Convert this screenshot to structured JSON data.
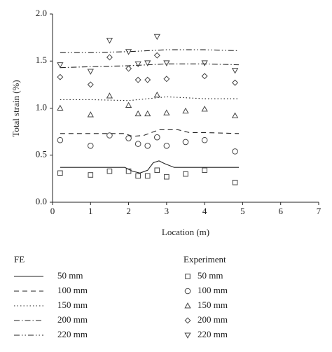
{
  "chart_data": {
    "type": "line",
    "xlabel": "Location (m)",
    "ylabel": "Total strain (%)",
    "xlim": [
      0,
      7
    ],
    "xticks": [
      0,
      1,
      2,
      3,
      4,
      5,
      6,
      7
    ],
    "ylim": [
      0,
      2
    ],
    "yticks": [
      {
        "value": 0,
        "label": "0.0"
      },
      {
        "value": 0.5,
        "label": "0.5"
      },
      {
        "value": 1,
        "label": "1.0"
      },
      {
        "value": 1.5,
        "label": "1.5"
      },
      {
        "value": 2,
        "label": "2.0"
      }
    ],
    "groups": [
      {
        "title": "FE",
        "series": [
          {
            "name": "50 mm",
            "type": "line",
            "dash": "none",
            "color": "#222",
            "x": [
              0.2,
              1,
              1.9,
              2.1,
              2.3,
              2.5,
              2.65,
              2.8,
              2.95,
              3.2,
              4,
              4.9
            ],
            "values": [
              0.37,
              0.37,
              0.37,
              0.33,
              0.31,
              0.34,
              0.42,
              0.44,
              0.41,
              0.37,
              0.37,
              0.37
            ]
          },
          {
            "name": "100 mm",
            "type": "line",
            "dash": "7 5",
            "color": "#222",
            "x": [
              0.2,
              1,
              1.9,
              2.1,
              2.4,
              2.6,
              2.8,
              3.3,
              3.6,
              4,
              4.9
            ],
            "values": [
              0.73,
              0.73,
              0.73,
              0.7,
              0.71,
              0.74,
              0.77,
              0.77,
              0.74,
              0.74,
              0.73
            ]
          },
          {
            "name": "150 mm",
            "type": "line",
            "dash": "1.5 3",
            "color": "#222",
            "x": [
              0.2,
              1,
              2,
              2.5,
              3,
              4,
              4.9
            ],
            "values": [
              1.09,
              1.09,
              1.08,
              1.1,
              1.12,
              1.1,
              1.1
            ]
          },
          {
            "name": "200 mm",
            "type": "line",
            "dash": "8 3 1.5 3",
            "color": "#222",
            "x": [
              0.2,
              1,
              2,
              2.5,
              3,
              4,
              4.9
            ],
            "values": [
              1.43,
              1.44,
              1.45,
              1.46,
              1.47,
              1.47,
              1.46
            ]
          },
          {
            "name": "220 mm",
            "type": "line",
            "dash": "8 3 1.5 3 1.5 3",
            "color": "#222",
            "x": [
              0.2,
              1,
              2,
              2.5,
              3,
              4,
              4.9
            ],
            "values": [
              1.59,
              1.59,
              1.6,
              1.61,
              1.62,
              1.62,
              1.61
            ]
          }
        ]
      },
      {
        "title": "Experiment",
        "series": [
          {
            "name": "50 mm",
            "type": "scatter",
            "marker": "square",
            "color": "#444",
            "x": [
              0.2,
              1,
              1.5,
              2,
              2.25,
              2.5,
              2.75,
              3,
              3.5,
              4,
              4.8
            ],
            "values": [
              0.31,
              0.29,
              0.33,
              0.33,
              0.28,
              0.28,
              0.34,
              0.27,
              0.3,
              0.34,
              0.21
            ]
          },
          {
            "name": "100 mm",
            "type": "scatter",
            "marker": "circle",
            "color": "#444",
            "x": [
              0.2,
              1,
              1.5,
              2,
              2.25,
              2.5,
              2.75,
              3,
              3.5,
              4,
              4.8
            ],
            "values": [
              0.66,
              0.6,
              0.71,
              0.68,
              0.62,
              0.6,
              0.69,
              0.6,
              0.64,
              0.66,
              0.54
            ]
          },
          {
            "name": "150 mm",
            "type": "scatter",
            "marker": "triangle",
            "color": "#444",
            "x": [
              0.2,
              1,
              1.5,
              2,
              2.25,
              2.5,
              2.75,
              3,
              3.5,
              4,
              4.8
            ],
            "values": [
              1.0,
              0.93,
              1.13,
              1.03,
              0.94,
              0.94,
              1.14,
              0.95,
              0.97,
              0.99,
              0.92
            ]
          },
          {
            "name": "200 mm",
            "type": "scatter",
            "marker": "diamond",
            "color": "#444",
            "x": [
              0.2,
              1,
              1.5,
              2,
              2.25,
              2.5,
              2.75,
              3,
              4,
              4.8
            ],
            "values": [
              1.33,
              1.25,
              1.54,
              1.42,
              1.3,
              1.3,
              1.56,
              1.31,
              1.34,
              1.27
            ]
          },
          {
            "name": "220 mm",
            "type": "scatter",
            "marker": "down-triangle",
            "color": "#444",
            "x": [
              0.2,
              1,
              1.5,
              2,
              2.25,
              2.5,
              2.75,
              3,
              4,
              4.8
            ],
            "values": [
              1.46,
              1.39,
              1.72,
              1.6,
              1.47,
              1.48,
              1.76,
              1.48,
              1.48,
              1.4
            ]
          }
        ]
      }
    ]
  }
}
